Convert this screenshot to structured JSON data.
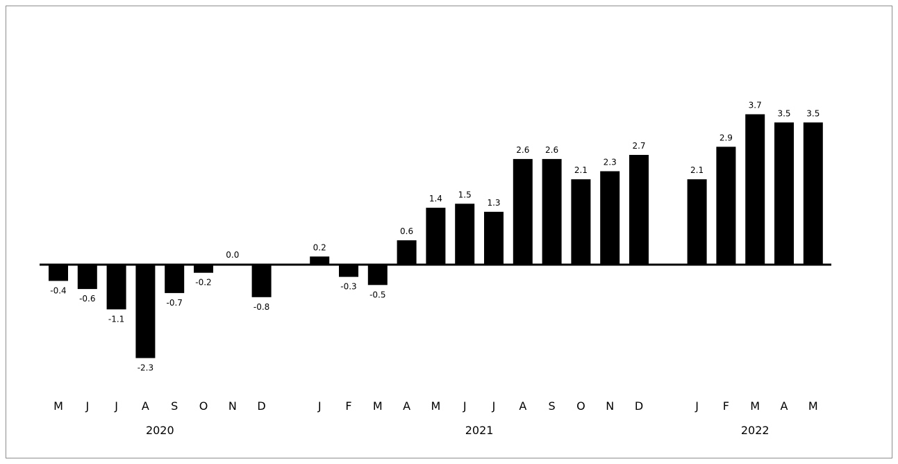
{
  "chart_data": {
    "type": "bar",
    "title": "",
    "xlabel": "",
    "ylabel": "",
    "ylim": [
      -2.3,
      3.7
    ],
    "grid": false,
    "legend": "none",
    "bar_color": "#000000",
    "axis_color": "#000000",
    "categories": [
      {
        "month": "M",
        "year": "2020",
        "value": -0.4,
        "label": "-0.4"
      },
      {
        "month": "J",
        "year": "2020",
        "value": -0.6,
        "label": "-0.6"
      },
      {
        "month": "J",
        "year": "2020",
        "value": -1.1,
        "label": "-1.1"
      },
      {
        "month": "A",
        "year": "2020",
        "value": -2.3,
        "label": "-2.3"
      },
      {
        "month": "S",
        "year": "2020",
        "value": -0.7,
        "label": "-0.7"
      },
      {
        "month": "O",
        "year": "2020",
        "value": -0.2,
        "label": "-0.2"
      },
      {
        "month": "N",
        "year": "2020",
        "value": 0.0,
        "label": "0.0"
      },
      {
        "month": "D",
        "year": "2020",
        "value": -0.8,
        "label": "-0.8"
      },
      {
        "month": "J",
        "year": "2021",
        "value": 0.2,
        "label": "0.2"
      },
      {
        "month": "F",
        "year": "2021",
        "value": -0.3,
        "label": "-0.3"
      },
      {
        "month": "M",
        "year": "2021",
        "value": -0.5,
        "label": "-0.5"
      },
      {
        "month": "A",
        "year": "2021",
        "value": 0.6,
        "label": "0.6"
      },
      {
        "month": "M",
        "year": "2021",
        "value": 1.4,
        "label": "1.4"
      },
      {
        "month": "J",
        "year": "2021",
        "value": 1.5,
        "label": "1.5"
      },
      {
        "month": "J",
        "year": "2021",
        "value": 1.3,
        "label": "1.3"
      },
      {
        "month": "A",
        "year": "2021",
        "value": 2.6,
        "label": "2.6"
      },
      {
        "month": "S",
        "year": "2021",
        "value": 2.6,
        "label": "2.6"
      },
      {
        "month": "O",
        "year": "2021",
        "value": 2.1,
        "label": "2.1"
      },
      {
        "month": "N",
        "year": "2021",
        "value": 2.3,
        "label": "2.3"
      },
      {
        "month": "D",
        "year": "2021",
        "value": 2.7,
        "label": "2.7"
      },
      {
        "month": "J",
        "year": "2022",
        "value": 2.1,
        "label": "2.1"
      },
      {
        "month": "F",
        "year": "2022",
        "value": 2.9,
        "label": "2.9"
      },
      {
        "month": "M",
        "year": "2022",
        "value": 3.7,
        "label": "3.7"
      },
      {
        "month": "A",
        "year": "2022",
        "value": 3.5,
        "label": "3.5"
      },
      {
        "month": "M",
        "year": "2022",
        "value": 3.5,
        "label": "3.5"
      }
    ],
    "years": [
      "2020",
      "2021",
      "2022"
    ]
  }
}
